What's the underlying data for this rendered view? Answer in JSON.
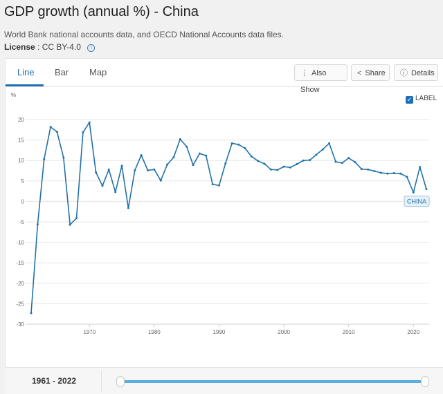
{
  "header": {
    "title": "GDP growth (annual %) - China",
    "source": "World Bank national accounts data, and OECD National Accounts data files.",
    "license_label": "License",
    "license_value": ": CC BY-4.0"
  },
  "tabs": [
    "Line",
    "Bar",
    "Map"
  ],
  "toolbar": {
    "also_show": "Also Show",
    "share": "Share",
    "details": "Details"
  },
  "label_toggle": "LABEL",
  "range": {
    "label": "1961 - 2022"
  },
  "colors": {
    "accent": "#1d6fb8",
    "series": "#2271a8",
    "slider": "#5aaee0"
  },
  "chart_data": {
    "type": "line",
    "ylabel": "%",
    "ylim": [
      -30,
      20
    ],
    "yticks": [
      20,
      15,
      10,
      5,
      0,
      -5,
      -10,
      -15,
      -20,
      -25,
      -30
    ],
    "xlim": [
      1961,
      2022
    ],
    "xticks": [
      1970,
      1980,
      1990,
      2000,
      2010,
      2020
    ],
    "grid": "horizontal",
    "series": [
      {
        "name": "CHINA",
        "x": [
          1961,
          1962,
          1963,
          1964,
          1965,
          1966,
          1967,
          1968,
          1969,
          1970,
          1971,
          1972,
          1973,
          1974,
          1975,
          1976,
          1977,
          1978,
          1979,
          1980,
          1981,
          1982,
          1983,
          1984,
          1985,
          1986,
          1987,
          1988,
          1989,
          1990,
          1991,
          1992,
          1993,
          1994,
          1995,
          1996,
          1997,
          1998,
          1999,
          2000,
          2001,
          2002,
          2003,
          2004,
          2005,
          2006,
          2007,
          2008,
          2009,
          2010,
          2011,
          2012,
          2013,
          2014,
          2015,
          2016,
          2017,
          2018,
          2019,
          2020,
          2021,
          2022
        ],
        "values": [
          -27.3,
          -5.6,
          10.3,
          18.2,
          17.0,
          10.7,
          -5.7,
          -4.1,
          16.9,
          19.3,
          7.1,
          3.8,
          7.8,
          2.3,
          8.7,
          -1.6,
          7.6,
          11.3,
          7.6,
          7.8,
          5.1,
          9.0,
          10.8,
          15.2,
          13.4,
          8.9,
          11.7,
          11.2,
          4.2,
          3.9,
          9.3,
          14.2,
          13.9,
          13.0,
          11.0,
          9.9,
          9.2,
          7.8,
          7.7,
          8.5,
          8.3,
          9.1,
          10.0,
          10.1,
          11.4,
          12.7,
          14.2,
          9.7,
          9.4,
          10.6,
          9.6,
          7.9,
          7.8,
          7.4,
          7.0,
          6.8,
          6.9,
          6.8,
          6.0,
          2.2,
          8.4,
          3.0
        ]
      }
    ]
  }
}
